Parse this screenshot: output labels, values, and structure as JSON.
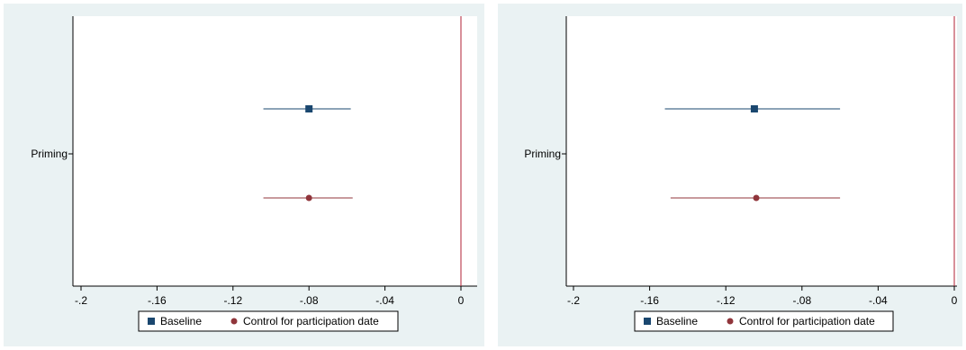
{
  "colors": {
    "panel_bg": "#eaf2f3",
    "plot_bg": "#ffffff",
    "baseline": "#1a476f",
    "control": "#90353b",
    "refline": "#b22234"
  },
  "chart_data": [
    {
      "type": "scatter",
      "subtype": "coefficient-plot",
      "title": "",
      "xlabel": "",
      "ylabel": "",
      "xlim": [
        -0.2,
        0.005
      ],
      "xticks": [
        -0.2,
        -0.16,
        -0.12,
        -0.08,
        -0.04,
        0
      ],
      "xtick_labels": [
        "-.2",
        "-.16",
        "-.12",
        "-.08",
        "-.04",
        "0"
      ],
      "categories": [
        "Priming"
      ],
      "reference_line_x": 0,
      "legend_position": "bottom",
      "grid": false,
      "series": [
        {
          "name": "Baseline",
          "marker": "square",
          "color": "#1a476f",
          "estimate": -0.08,
          "ci_low": -0.104,
          "ci_high": -0.058
        },
        {
          "name": "Control for participation date",
          "marker": "circle",
          "color": "#90353b",
          "estimate": -0.08,
          "ci_low": -0.104,
          "ci_high": -0.057
        }
      ]
    },
    {
      "type": "scatter",
      "subtype": "coefficient-plot",
      "title": "",
      "xlabel": "",
      "ylabel": "",
      "xlim": [
        -0.2,
        0.005
      ],
      "xticks": [
        -0.2,
        -0.16,
        -0.12,
        -0.08,
        -0.04,
        0
      ],
      "xtick_labels": [
        "-.2",
        "-.16",
        "-.12",
        "-.08",
        "-.04",
        "0"
      ],
      "categories": [
        "Priming"
      ],
      "reference_line_x": 0,
      "legend_position": "bottom",
      "grid": false,
      "series": [
        {
          "name": "Baseline",
          "marker": "square",
          "color": "#1a476f",
          "estimate": -0.105,
          "ci_low": -0.152,
          "ci_high": -0.06
        },
        {
          "name": "Control for participation date",
          "marker": "circle",
          "color": "#90353b",
          "estimate": -0.104,
          "ci_low": -0.149,
          "ci_high": -0.06
        }
      ]
    }
  ]
}
